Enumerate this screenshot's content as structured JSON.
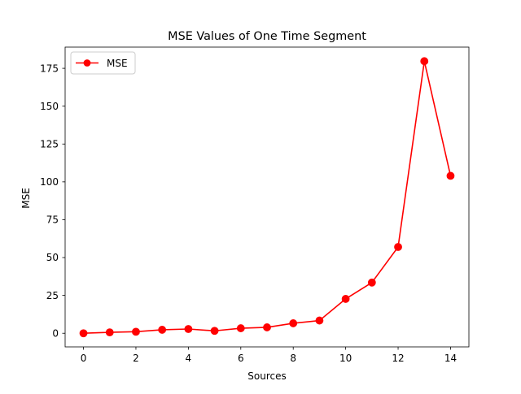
{
  "chart_data": {
    "type": "line",
    "title": "MSE Values of One Time Segment",
    "xlabel": "Sources",
    "ylabel": "MSE",
    "xlim": [
      -0.7,
      14.7
    ],
    "ylim": [
      -9,
      189
    ],
    "xticks": [
      0,
      2,
      4,
      6,
      8,
      10,
      12,
      14
    ],
    "yticks": [
      0,
      25,
      50,
      75,
      100,
      125,
      150,
      175
    ],
    "grid": false,
    "legend_position": "upper-left",
    "series": [
      {
        "name": "MSE",
        "color": "#ff0000",
        "marker": "circle",
        "x": [
          0,
          1,
          2,
          3,
          4,
          5,
          6,
          7,
          8,
          9,
          10,
          11,
          12,
          13,
          14
        ],
        "y": [
          0.0,
          0.6,
          1.0,
          2.3,
          2.8,
          1.6,
          3.3,
          3.9,
          6.6,
          8.4,
          22.7,
          33.5,
          57.0,
          179.7,
          104.0
        ]
      }
    ]
  }
}
